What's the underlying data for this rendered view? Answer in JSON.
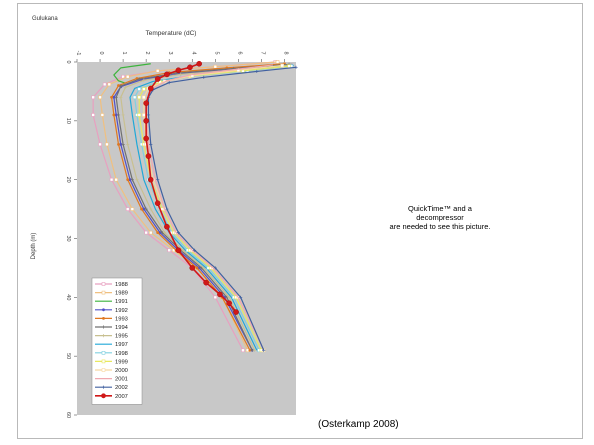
{
  "slide": {
    "citation": "(Osterkamp 2008)",
    "quicktime_message": [
      "QuickTime™ and a",
      "decompressor",
      "are needed to see this picture."
    ]
  },
  "chart_data": {
    "type": "line",
    "title": "Gulukana",
    "xlabel": "Temperature (dC)",
    "ylabel": "Depth (m)",
    "x_ticks": [
      "-1",
      "0",
      "1",
      "2",
      "3",
      "4",
      "5",
      "6",
      "7",
      "8"
    ],
    "y_ticks": [
      "0",
      "10",
      "20",
      "30",
      "40",
      "50",
      "60"
    ],
    "xlim": [
      -1,
      8.5
    ],
    "ylim": [
      60,
      0
    ],
    "x_axis_position": "top",
    "grid": false,
    "plot_background": "#c8c8c8",
    "legend_position": "bottom-left",
    "series": [
      {
        "name": "1988",
        "color": "#e8a0c0",
        "marker": "square-open",
        "x": [
          7.6,
          5.0,
          2.5,
          1.0,
          0.2,
          -0.3,
          -0.3,
          0.0,
          0.5,
          1.2,
          2.0,
          3.0,
          4.0,
          5.0,
          6.2
        ],
        "y": [
          0,
          0.8,
          1.5,
          2.5,
          3.8,
          6,
          9,
          14,
          20,
          25,
          29,
          32,
          35,
          40,
          49
        ]
      },
      {
        "name": "1989",
        "color": "#f0c080",
        "marker": "square-open",
        "x": [
          7.7,
          5.0,
          2.5,
          1.2,
          0.4,
          0.0,
          0.1,
          0.3,
          0.7,
          1.4,
          2.2,
          3.2,
          4.2,
          5.3,
          6.4
        ],
        "y": [
          0,
          0.8,
          1.5,
          2.5,
          3.8,
          6,
          9,
          14,
          20,
          25,
          29,
          32,
          35,
          40,
          49
        ]
      },
      {
        "name": "1991",
        "color": "#3cb43c",
        "marker": "none",
        "x": [
          2.2,
          0.9,
          0.6,
          0.8,
          1.1
        ],
        "y": [
          0.3,
          1.0,
          2.2,
          3.2,
          3.6
        ]
      },
      {
        "name": "1992",
        "color": "#5050c8",
        "marker": "dot",
        "x": [
          8.3,
          6.0,
          3.5,
          1.8,
          0.9,
          0.6,
          0.7,
          0.9,
          1.3,
          1.9,
          2.6,
          3.4,
          4.3,
          5.4,
          6.6
        ],
        "y": [
          0.5,
          1.2,
          2.0,
          3.0,
          4.2,
          6,
          9,
          14,
          20,
          25,
          29,
          32,
          35,
          40,
          49
        ]
      },
      {
        "name": "1993",
        "color": "#e07820",
        "marker": "dot",
        "x": [
          8.0,
          5.5,
          3.0,
          1.6,
          0.8,
          0.5,
          0.6,
          0.8,
          1.2,
          1.8,
          2.5,
          3.3,
          4.2,
          5.3,
          6.5
        ],
        "y": [
          0.3,
          1.0,
          1.8,
          2.8,
          4.0,
          6,
          9,
          14,
          20,
          25,
          29,
          32,
          35,
          40,
          49
        ]
      },
      {
        "name": "1994",
        "color": "#707070",
        "marker": "cross",
        "x": [
          8.2,
          5.8,
          3.3,
          1.7,
          0.9,
          0.7,
          0.8,
          1.0,
          1.4,
          2.0,
          2.7,
          3.5,
          4.4,
          5.5,
          6.6
        ],
        "y": [
          0.4,
          1.1,
          1.9,
          2.9,
          4.1,
          6,
          9,
          14,
          20,
          25,
          29,
          32,
          35,
          40,
          49
        ]
      },
      {
        "name": "1995",
        "color": "#c8c090",
        "marker": "cross",
        "x": [
          8.3,
          6.0,
          3.5,
          1.9,
          1.1,
          0.9,
          1.0,
          1.2,
          1.6,
          2.2,
          2.8,
          3.6,
          4.5,
          5.6,
          6.7
        ],
        "y": [
          0.5,
          1.3,
          2.1,
          3.1,
          4.3,
          6,
          9,
          14,
          20,
          25,
          29,
          32,
          35,
          40,
          49
        ]
      },
      {
        "name": "1997",
        "color": "#20a8d8",
        "marker": "none",
        "x": [
          8.4,
          6.5,
          4.0,
          2.3,
          1.5,
          1.3,
          1.4,
          1.6,
          1.9,
          2.4,
          3.0,
          3.7,
          4.6,
          5.7,
          6.8
        ],
        "y": [
          0.6,
          1.4,
          2.3,
          3.3,
          4.5,
          6,
          9,
          14,
          20,
          25,
          29,
          32,
          35,
          40,
          49
        ]
      },
      {
        "name": "1998",
        "color": "#80d0e0",
        "marker": "square-open",
        "x": [
          8.3,
          6.4,
          4.0,
          2.5,
          1.7,
          1.5,
          1.6,
          1.8,
          2.1,
          2.6,
          3.1,
          3.8,
          4.7,
          5.8,
          6.9
        ],
        "y": [
          0.7,
          1.5,
          2.4,
          3.4,
          4.6,
          6,
          9,
          14,
          20,
          25,
          29,
          32,
          35,
          40,
          49
        ]
      },
      {
        "name": "1999",
        "color": "#e8e860",
        "marker": "square-open",
        "x": [
          8.2,
          6.2,
          3.9,
          2.6,
          1.9,
          1.7,
          1.7,
          1.9,
          2.2,
          2.7,
          3.2,
          3.9,
          4.8,
          5.9,
          7.0
        ],
        "y": [
          0.7,
          1.5,
          2.4,
          3.4,
          4.6,
          6,
          9,
          14,
          20,
          25,
          29,
          32,
          35,
          40,
          49
        ]
      },
      {
        "name": "2000",
        "color": "#f8d8a0",
        "marker": "square-open",
        "x": [
          7.9,
          6.0,
          4.0,
          2.8,
          2.1,
          1.9,
          1.9,
          2.0,
          2.3,
          2.8,
          3.3,
          4.0,
          4.9,
          6.0,
          7.1
        ],
        "y": [
          0.6,
          1.4,
          2.3,
          3.3,
          4.5,
          6,
          9,
          14,
          20,
          25,
          29,
          32,
          35,
          40,
          49
        ]
      },
      {
        "name": "2001",
        "color": "#f0a8b0",
        "marker": "none",
        "x": [
          7.5,
          5.8,
          3.9,
          2.9,
          2.3,
          2.1,
          2.0,
          2.1,
          2.4,
          2.8,
          3.3,
          4.0,
          4.9,
          6.0,
          7.1
        ],
        "y": [
          0.5,
          1.3,
          2.2,
          3.2,
          4.4,
          6,
          9,
          14,
          20,
          25,
          29,
          32,
          35,
          40,
          49
        ]
      },
      {
        "name": "2002",
        "color": "#4060a0",
        "marker": "cross",
        "x": [
          8.5,
          6.8,
          4.5,
          3.0,
          2.3,
          2.1,
          2.1,
          2.2,
          2.5,
          2.9,
          3.4,
          4.1,
          5.0,
          6.1,
          7.1
        ],
        "y": [
          0.9,
          1.6,
          2.6,
          3.5,
          4.7,
          6,
          9,
          14,
          20,
          25,
          29,
          32,
          35,
          40,
          49
        ]
      },
      {
        "name": "2007",
        "color": "#d01818",
        "marker": "dot-large",
        "x": [
          4.3,
          3.9,
          3.4,
          2.9,
          2.5,
          2.2,
          2.0,
          2.0,
          2.0,
          2.1,
          2.2,
          2.5,
          2.9,
          3.4,
          4.0,
          4.6,
          5.2,
          5.6,
          5.9
        ],
        "y": [
          0.3,
          0.9,
          1.4,
          2.1,
          2.9,
          4.5,
          7,
          10,
          13,
          16,
          20,
          24,
          28,
          32,
          35,
          37.5,
          39.5,
          41,
          42.5
        ]
      }
    ]
  }
}
